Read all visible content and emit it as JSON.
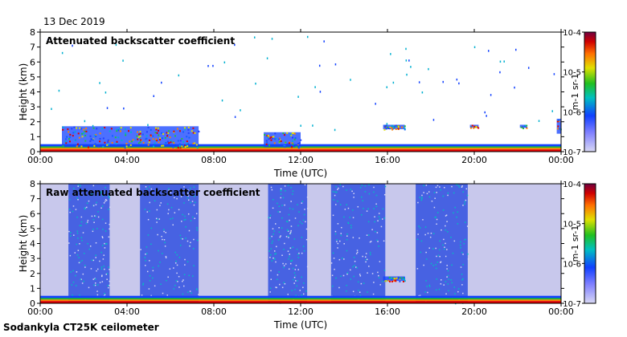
{
  "date_label": "13 Dec 2019",
  "instrument_label": "Sodankyla CT25K ceilometer",
  "chart_data": [
    {
      "type": "heatmap",
      "title": "Attenuated backscatter coefficient",
      "xlabel": "Time (UTC)",
      "ylabel": "Height (km)",
      "x_ticks": [
        "00:00",
        "04:00",
        "08:00",
        "12:00",
        "16:00",
        "20:00",
        "00:00"
      ],
      "y_ticks": [
        "0",
        "1",
        "2",
        "3",
        "4",
        "5",
        "6",
        "7",
        "8"
      ],
      "xlim_hours": [
        0,
        24
      ],
      "ylim_km": [
        0,
        8
      ],
      "colorbar": {
        "scale": "log",
        "range": [
          1e-07,
          0.0001
        ],
        "ticks": [
          "10-7",
          "10-6",
          "10-5",
          "10-4"
        ],
        "units": "m-1 sr-1"
      },
      "features": [
        {
          "name": "boundary-layer aerosol",
          "time_range_h": [
            0,
            24
          ],
          "height_km": [
            0,
            0.5
          ]
        },
        {
          "name": "low cloud",
          "time_range_h": [
            1,
            7.3
          ],
          "height_km": [
            0.3,
            1.7
          ]
        },
        {
          "name": "low cloud",
          "time_range_h": [
            10.3,
            12
          ],
          "height_km": [
            0.3,
            1.3
          ]
        },
        {
          "name": "cloud layer",
          "time_range_h": [
            15.8,
            16.8
          ],
          "height_km": [
            1.5,
            1.8
          ]
        },
        {
          "name": "cloud layer",
          "time_range_h": [
            19.8,
            20.2
          ],
          "height_km": [
            1.6,
            1.8
          ]
        },
        {
          "name": "cloud layer",
          "time_range_h": [
            22.1,
            22.4
          ],
          "height_km": [
            1.6,
            1.8
          ]
        },
        {
          "name": "cloud layer",
          "time_range_h": [
            23.8,
            24
          ],
          "height_km": [
            1.2,
            2.2
          ]
        }
      ]
    },
    {
      "type": "heatmap",
      "title": "Raw attenuated backscatter coefficient",
      "xlabel": "Time (UTC)",
      "ylabel": "Height (km)",
      "x_ticks": [
        "00:00",
        "04:00",
        "08:00",
        "12:00",
        "16:00",
        "20:00",
        "00:00"
      ],
      "y_ticks": [
        "0",
        "1",
        "2",
        "3",
        "4",
        "5",
        "6",
        "7",
        "8"
      ],
      "xlim_hours": [
        0,
        24
      ],
      "ylim_km": [
        0,
        8
      ],
      "colorbar": {
        "scale": "log",
        "range": [
          1e-07,
          0.0001
        ],
        "ticks": [
          "10-7",
          "10-6",
          "10-5",
          "10-4"
        ],
        "units": "m-1 sr-1"
      },
      "features": [
        {
          "name": "high-noise column",
          "time_range_h": [
            1.3,
            3.2
          ],
          "height_km": [
            0,
            8
          ]
        },
        {
          "name": "high-noise column",
          "time_range_h": [
            4.6,
            7.3
          ],
          "height_km": [
            0,
            8
          ]
        },
        {
          "name": "high-noise column",
          "time_range_h": [
            10.5,
            12.3
          ],
          "height_km": [
            0,
            8
          ]
        },
        {
          "name": "high-noise column",
          "time_range_h": [
            13.4,
            15.9
          ],
          "height_km": [
            0,
            8
          ]
        },
        {
          "name": "high-noise column",
          "time_range_h": [
            17.3,
            19.7
          ],
          "height_km": [
            0,
            8
          ]
        },
        {
          "name": "cloud layer",
          "time_range_h": [
            15.8,
            16.8
          ],
          "height_km": [
            1.5,
            1.8
          ]
        },
        {
          "name": "boundary-layer aerosol",
          "time_range_h": [
            0,
            24
          ],
          "height_km": [
            0,
            0.5
          ]
        }
      ]
    }
  ]
}
